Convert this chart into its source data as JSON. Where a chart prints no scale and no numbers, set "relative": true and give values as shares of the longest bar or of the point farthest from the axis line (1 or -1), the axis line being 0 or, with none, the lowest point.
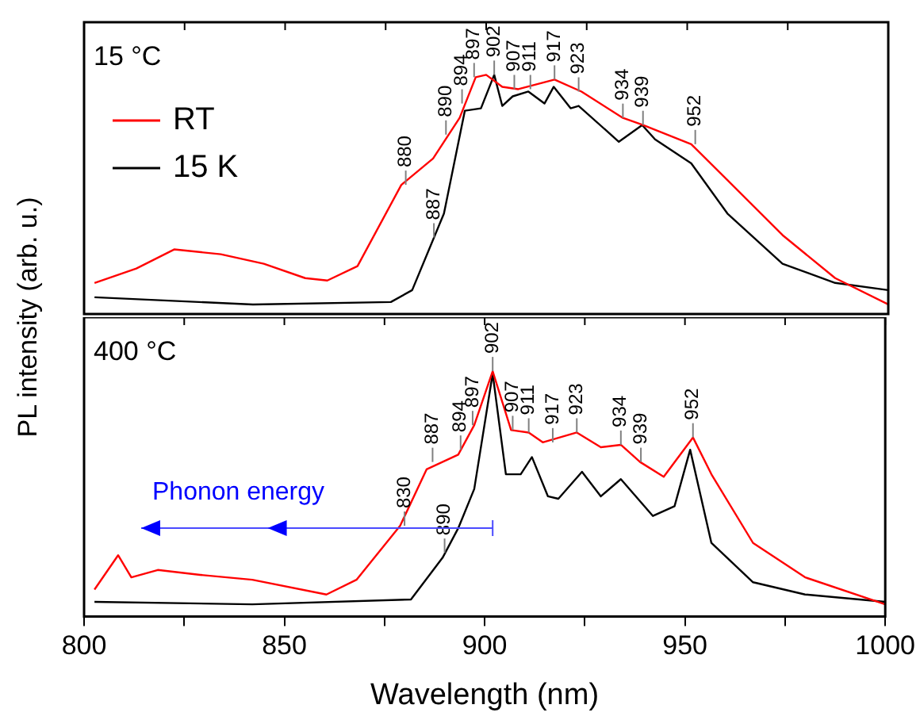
{
  "chart_data": [
    {
      "type": "line",
      "relative": true,
      "ylabel": "PL intensity (arb. u.)",
      "xlim": [
        800,
        1000
      ],
      "xticks": [
        800,
        {
          "value": 825,
          "label": null
        },
        850,
        {
          "value": 875,
          "label": null
        },
        900,
        {
          "value": 925,
          "label": null
        },
        950,
        {
          "value": 975,
          "label": null
        },
        1000
      ],
      "tick_labels": false,
      "grid": false,
      "legend": "top left",
      "marker": "none",
      "line_style": "solid",
      "series": [
        {
          "name": "RT",
          "color": "#ff0000",
          "x": [
            802.6,
            813,
            822.4,
            834,
            844.7,
            855,
            860.5,
            868,
            878.9,
            886.8,
            893.4,
            897.4,
            900,
            904,
            908,
            917,
            923.7,
            934,
            939,
            951,
            960,
            973.7,
            986.8,
            1000
          ],
          "values": [
            0.13,
            0.19,
            0.27,
            0.25,
            0.21,
            0.15,
            0.14,
            0.2,
            0.54,
            0.65,
            0.82,
            0.99,
            1,
            0.95,
            0.94,
            0.98,
            0.93,
            0.82,
            0.79,
            0.71,
            0.56,
            0.33,
            0.15,
            0.04
          ]
        },
        {
          "name": "15 K",
          "color": "#000000",
          "x": [
            802.6,
            842,
            876.3,
            881.6,
            889.5,
            894.7,
            898.7,
            902,
            904,
            906.6,
            910.5,
            914.5,
            916.8,
            921,
            923,
            933,
            938.8,
            942,
            951,
            960,
            973.7,
            986.8,
            1000
          ],
          "values": [
            0.07,
            0.04,
            0.05,
            0.1,
            0.42,
            0.85,
            0.86,
            1,
            0.87,
            0.91,
            0.93,
            0.88,
            0.95,
            0.86,
            0.87,
            0.72,
            0.79,
            0.73,
            0.63,
            0.42,
            0.21,
            0.13,
            0.1
          ]
        }
      ],
      "annotations": [
        "15 °C",
        {
          "text": "880",
          "x": 880,
          "y": 0.54
        },
        {
          "text": "887",
          "x": 887,
          "y": 0.32
        },
        {
          "text": "890",
          "x": 890,
          "y": 0.75
        },
        {
          "text": "894",
          "x": 894,
          "y": 0.88
        },
        {
          "text": "897",
          "x": 897,
          "y": 0.99
        },
        {
          "text": "902",
          "x": 902,
          "y": 1
        },
        {
          "text": "907",
          "x": 907,
          "y": 0.94
        },
        {
          "text": "911",
          "x": 911,
          "y": 0.94
        },
        {
          "text": "917",
          "x": 917,
          "y": 0.98
        },
        {
          "text": "923",
          "x": 923,
          "y": 0.93
        },
        {
          "text": "934",
          "x": 934,
          "y": 0.82
        },
        {
          "text": "939",
          "x": 939,
          "y": 0.79
        },
        {
          "text": "952",
          "x": 952,
          "y": 0.71
        }
      ]
    },
    {
      "type": "line",
      "relative": true,
      "xlabel": "Wavelength (nm)",
      "xlim": [
        800,
        1000
      ],
      "xticks": [
        800,
        {
          "value": 825,
          "label": null
        },
        850,
        {
          "value": 875,
          "label": null
        },
        900,
        {
          "value": 925,
          "label": null
        },
        950,
        {
          "value": 975,
          "label": null
        },
        1000
      ],
      "tick_labels": "x",
      "grid": false,
      "marker": "none",
      "line_style": "solid",
      "series": [
        {
          "color": "#ff0000",
          "x": [
            802.6,
            808.5,
            811.8,
            818.4,
            829,
            842,
            860.5,
            868,
            878.9,
            885.5,
            893.4,
            897.4,
            902,
            906.6,
            911,
            914.5,
            923,
            929,
            934,
            938.8,
            944.7,
            952,
            956.6,
            967,
            980,
            1000
          ],
          "values": [
            0.11,
            0.25,
            0.16,
            0.19,
            0.17,
            0.15,
            0.09,
            0.15,
            0.37,
            0.6,
            0.66,
            0.78,
            1,
            0.76,
            0.75,
            0.71,
            0.75,
            0.69,
            0.7,
            0.63,
            0.57,
            0.73,
            0.58,
            0.3,
            0.16,
            0.05
          ]
        },
        {
          "color": "#000000",
          "x": [
            802.6,
            842,
            881.6,
            889.5,
            893.4,
            897.4,
            902,
            905.3,
            909,
            911.8,
            915.8,
            918.4,
            924.3,
            929,
            934,
            942,
            947.4,
            951.3,
            956.6,
            967,
            980,
            1000
          ],
          "values": [
            0.06,
            0.05,
            0.07,
            0.24,
            0.36,
            0.52,
            0.99,
            0.58,
            0.58,
            0.65,
            0.49,
            0.48,
            0.59,
            0.49,
            0.56,
            0.41,
            0.45,
            0.68,
            0.3,
            0.14,
            0.09,
            0.06
          ]
        }
      ],
      "annotations": [
        "400 °C",
        "Phonon energy",
        {
          "text": "830",
          "x": 880,
          "y": 0.37
        },
        {
          "text": "887",
          "x": 887,
          "y": 0.63
        },
        {
          "text": "890",
          "x": 890,
          "y": 0.26
        },
        {
          "text": "894",
          "x": 894,
          "y": 0.68
        },
        {
          "text": "897",
          "x": 897,
          "y": 0.78
        },
        {
          "text": "902",
          "x": 902,
          "y": 1
        },
        {
          "text": "907",
          "x": 907,
          "y": 0.76
        },
        {
          "text": "911",
          "x": 911,
          "y": 0.75
        },
        {
          "text": "917",
          "x": 917,
          "y": 0.71
        },
        {
          "text": "923",
          "x": 923,
          "y": 0.75
        },
        {
          "text": "934",
          "x": 934,
          "y": 0.7
        },
        {
          "text": "939",
          "x": 939,
          "y": 0.63
        },
        {
          "text": "952",
          "x": 952,
          "y": 0.73
        }
      ]
    }
  ]
}
